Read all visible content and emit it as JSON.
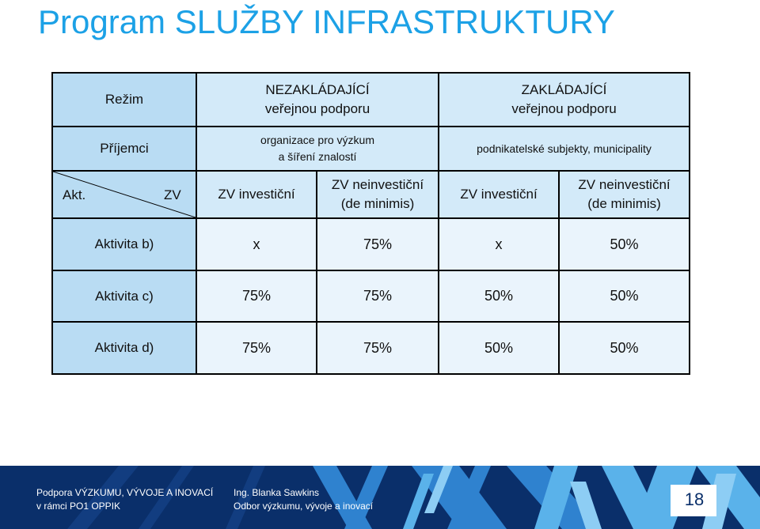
{
  "title": "Program SLUŽBY INFRASTRUKTURY",
  "table": {
    "rezim_label": "Režim",
    "nezakladajici_1": "NEZAKLÁDAJÍCÍ",
    "nezakladajici_2": "veřejnou podporu",
    "zakladajici_1": "ZAKLÁDAJÍCÍ",
    "zakladajici_2": "veřejnou podporu",
    "prijemci_label": "Příjemci",
    "prijemci_a_1": "organizace pro výzkum",
    "prijemci_a_2": "a šíření znalostí",
    "prijemci_b": "podnikatelské subjekty, municipality",
    "akt_label": "Akt.",
    "zv_label": "ZV",
    "col_headers": [
      {
        "line1": "ZV investiční",
        "line2": ""
      },
      {
        "line1": "ZV neinvestiční",
        "line2": "(de minimis)"
      },
      {
        "line1": "ZV investiční",
        "line2": ""
      },
      {
        "line1": "ZV neinvestiční",
        "line2": "(de minimis)"
      }
    ],
    "rows": [
      {
        "label": "Aktivita b)",
        "values": [
          "x",
          "75%",
          "x",
          "50%"
        ]
      },
      {
        "label": "Aktivita c)",
        "values": [
          "75%",
          "75%",
          "50%",
          "50%"
        ]
      },
      {
        "label": "Aktivita d)",
        "values": [
          "75%",
          "75%",
          "50%",
          "50%"
        ]
      }
    ]
  },
  "footer": {
    "left_line1": "Podpora VÝZKUMU, VÝVOJE A INOVACÍ",
    "left_line2": "v rámci PO1 OPPIK",
    "mid_line1": "Ing. Blanka Sawkins",
    "mid_line2": "Odbor výzkumu, vývoje a inovací",
    "page_number": "18"
  }
}
